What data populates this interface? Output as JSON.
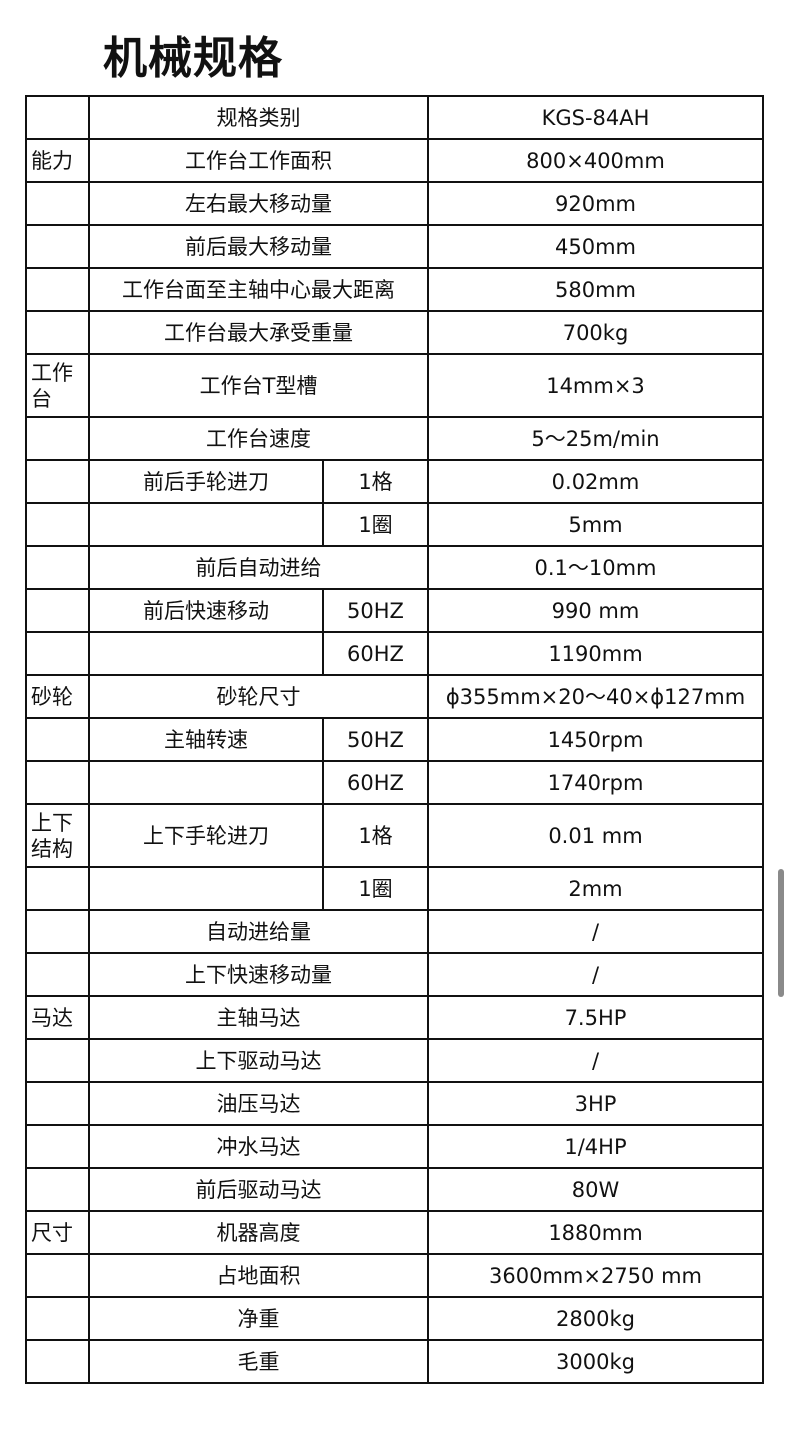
{
  "title": "机械规格",
  "rows": [
    {
      "cat": "",
      "name": "规格类别",
      "sub": null,
      "value": "KGS-84AH"
    },
    {
      "cat": "能力",
      "name": "工作台工作面积",
      "sub": null,
      "value": "800×400mm"
    },
    {
      "cat": "",
      "name": "左右最大移动量",
      "sub": null,
      "value": "920mm"
    },
    {
      "cat": "",
      "name": "前后最大移动量",
      "sub": null,
      "value": "450mm"
    },
    {
      "cat": "",
      "name": "工作台面至主轴中心最大距离",
      "sub": null,
      "value": "580mm"
    },
    {
      "cat": "",
      "name": "工作台最大承受重量",
      "sub": null,
      "value": "700kg"
    },
    {
      "cat": "工作台",
      "name": "工作台T型槽",
      "sub": null,
      "value": "14mm×3",
      "tall": true
    },
    {
      "cat": "",
      "name": "工作台速度",
      "sub": null,
      "value": "5～25m/min"
    },
    {
      "cat": "",
      "name": "前后手轮进刀",
      "sub": "1格",
      "value": "0.02mm"
    },
    {
      "cat": "",
      "name": "",
      "sub": "1圈",
      "value": "5mm"
    },
    {
      "cat": "",
      "name": "前后自动进给",
      "sub": null,
      "value": "0.1～10mm"
    },
    {
      "cat": "",
      "name": "前后快速移动",
      "sub": "50HZ",
      "value": "990 mm"
    },
    {
      "cat": "",
      "name": "",
      "sub": "60HZ",
      "value": "1190mm"
    },
    {
      "cat": "砂轮",
      "name": "砂轮尺寸",
      "sub": null,
      "value": "ϕ355mm×20～40×ϕ127mm"
    },
    {
      "cat": "",
      "name": "主轴转速",
      "sub": "50HZ",
      "value": "1450rpm"
    },
    {
      "cat": "",
      "name": "",
      "sub": "60HZ",
      "value": "1740rpm"
    },
    {
      "cat": "上下结构",
      "name": "上下手轮进刀",
      "sub": "1格",
      "value": "0.01 mm",
      "tall": true
    },
    {
      "cat": "",
      "name": "",
      "sub": "1圈",
      "value": "2mm"
    },
    {
      "cat": "",
      "name": "自动进给量",
      "sub": null,
      "value": "/"
    },
    {
      "cat": "",
      "name": "上下快速移动量",
      "sub": null,
      "value": "/"
    },
    {
      "cat": "马达",
      "name": "主轴马达",
      "sub": null,
      "value": "7.5HP"
    },
    {
      "cat": "",
      "name": "上下驱动马达",
      "sub": null,
      "value": "/"
    },
    {
      "cat": "",
      "name": "油压马达",
      "sub": null,
      "value": "3HP"
    },
    {
      "cat": "",
      "name": "冲水马达",
      "sub": null,
      "value": "1/4HP"
    },
    {
      "cat": "",
      "name": "前后驱动马达",
      "sub": null,
      "value": "80W"
    },
    {
      "cat": "尺寸",
      "name": "机器高度",
      "sub": null,
      "value": "1880mm"
    },
    {
      "cat": "",
      "name": "占地面积",
      "sub": null,
      "value": "3600mm×2750 mm"
    },
    {
      "cat": "",
      "name": "净重",
      "sub": null,
      "value": "2800kg"
    },
    {
      "cat": "",
      "name": "毛重",
      "sub": null,
      "value": "3000kg"
    }
  ]
}
